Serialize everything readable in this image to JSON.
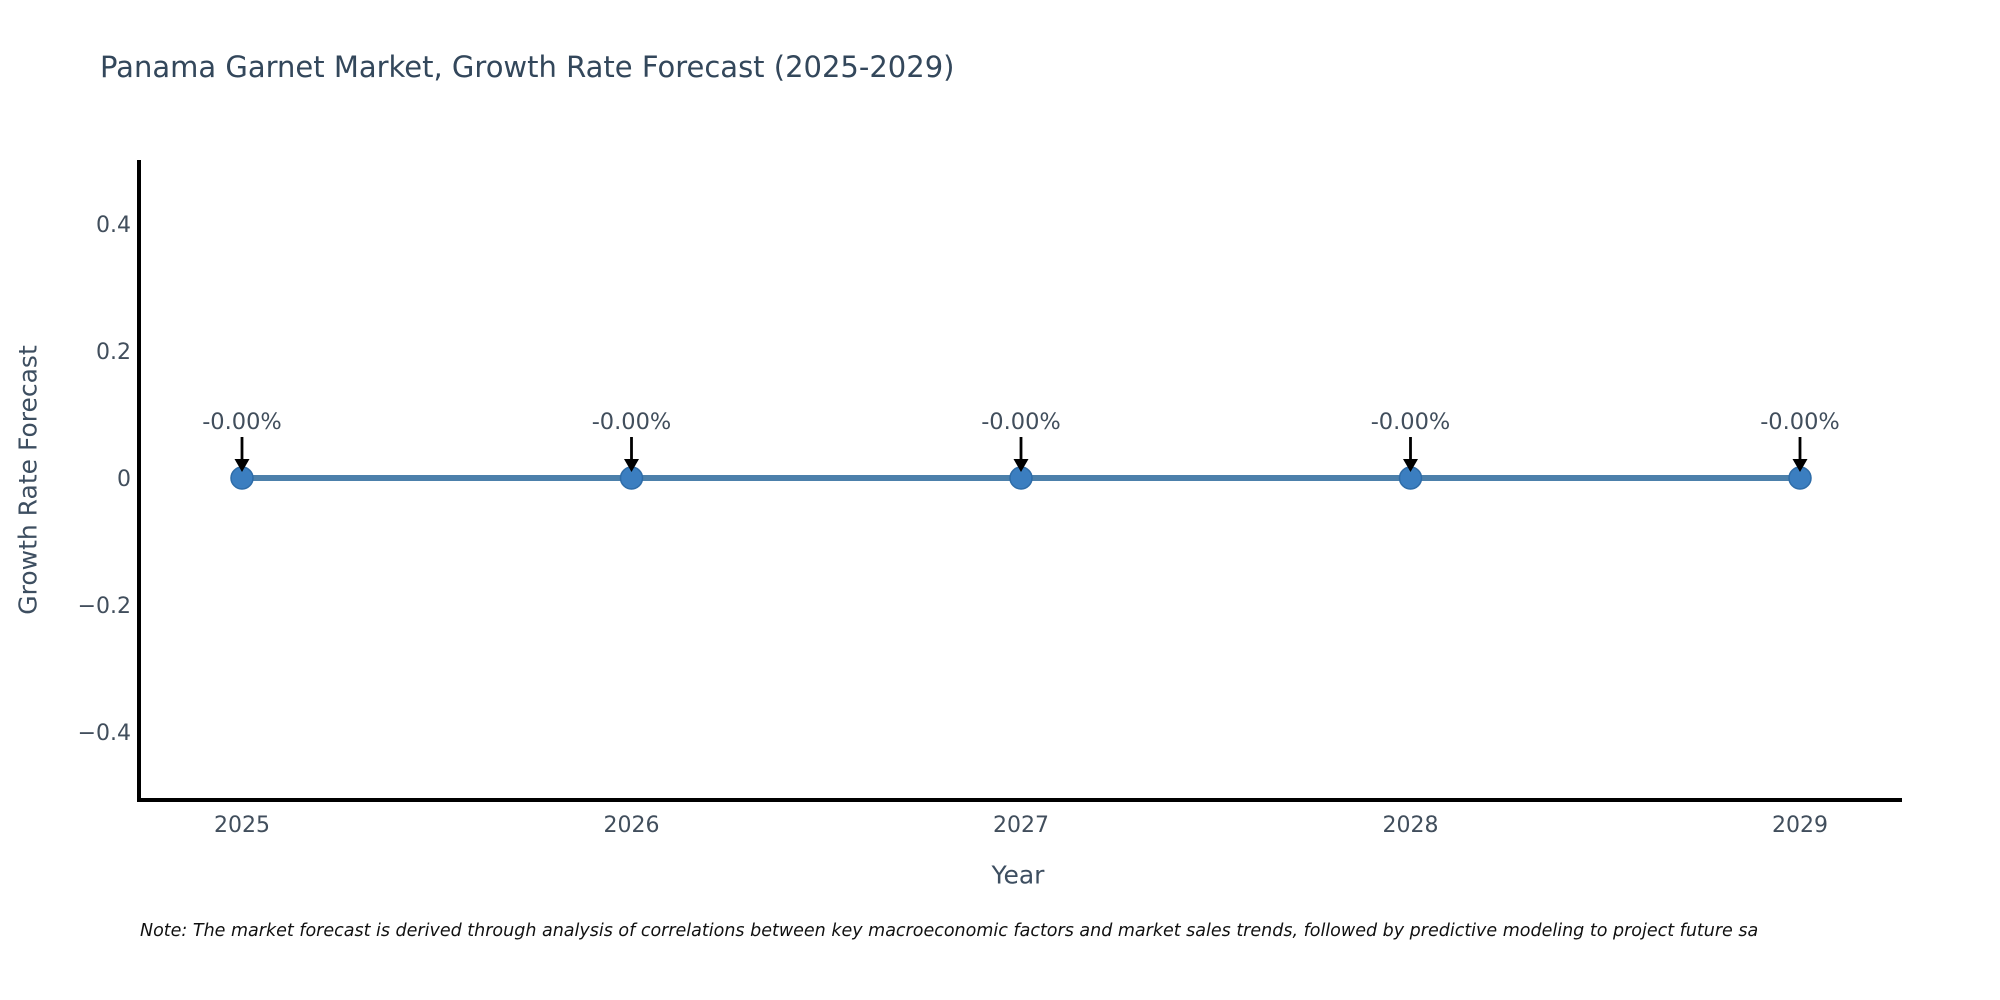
{
  "chart_data": {
    "type": "line",
    "title": "Panama Garnet Market, Growth Rate Forecast (2025-2029)",
    "xlabel": "Year",
    "ylabel": "Growth Rate Forecast",
    "categories": [
      "2025",
      "2026",
      "2027",
      "2028",
      "2029"
    ],
    "x": [
      2025,
      2026,
      2027,
      2028,
      2029
    ],
    "series": [
      {
        "name": "Growth Rate Forecast",
        "values": [
          0,
          0,
          0,
          0,
          0
        ]
      }
    ],
    "point_labels": [
      "-0.00%",
      "-0.00%",
      "-0.00%",
      "-0.00%",
      "-0.00%"
    ],
    "yticks": [
      0.4,
      0.2,
      0,
      -0.2,
      -0.4
    ],
    "ytick_labels": [
      "0.4",
      "0.2",
      "0",
      "−0.2",
      "−0.4"
    ],
    "ylim": [
      -0.5,
      0.5
    ],
    "xlim": [
      2024.74,
      2029.26
    ],
    "grid": false,
    "legend": "none",
    "annotation_arrow": "down-arrow",
    "note": "Note: The market forecast is derived through analysis of correlations between key macroeconomic factors and market sales trends, followed by predictive modeling to project future sa",
    "colors": {
      "line": "#4c80ab",
      "marker": "#3b7ec0",
      "marker_edge": "#2e6ca8",
      "spine": "#000000",
      "arrow": "#000000",
      "tick_label": "#414e5c",
      "title": "#33475b",
      "axis_title": "#3d4e60",
      "annotation": "#414e5c",
      "note_text": "#111111"
    }
  }
}
